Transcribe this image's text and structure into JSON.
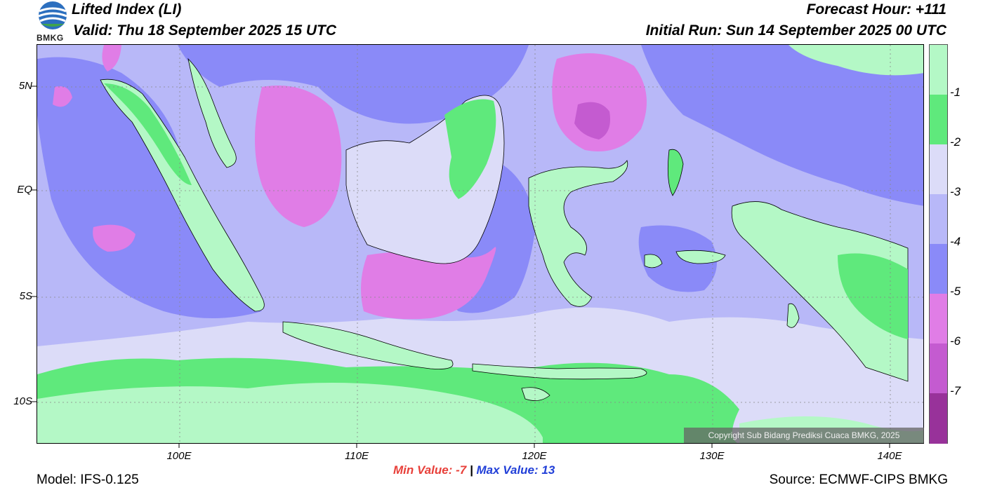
{
  "header": {
    "title": "Lifted Index (LI)",
    "valid": "Valid: Thu 18 September 2025 15 UTC",
    "forecast_hour": "Forecast Hour: +111",
    "initial_run": "Initial Run: Sun 14 September 2025 00 UTC",
    "logo_text": "BMKG"
  },
  "map": {
    "lat_labels": [
      "5N",
      "EQ",
      "5S",
      "10S"
    ],
    "lon_labels": [
      "100E",
      "110E",
      "120E",
      "130E",
      "140E"
    ],
    "copyright": "Copyright Sub Bidang Prediksi Cuaca BMKG, 2025",
    "colors": {
      "ocean_light": "#b4f8c6",
      "green": "#5fe97c",
      "pale": "#dcdcf8",
      "light_blue": "#b8b8f8",
      "blue": "#8a8af8",
      "magenta": "#e07de6",
      "purple": "#c45bd0",
      "dark_purple": "#98329a"
    }
  },
  "colorbar": {
    "labels": [
      "-1",
      "-2",
      "-3",
      "-4",
      "-5",
      "-6",
      "-7"
    ],
    "colors": [
      "#b4f8c6",
      "#5fe97c",
      "#dcdcf8",
      "#b8b8f8",
      "#8a8af8",
      "#e07de6",
      "#c45bd0",
      "#98329a"
    ]
  },
  "footer": {
    "min_label": "Min Value:",
    "min_value": "-7",
    "separator": "|",
    "max_label": "Max Value:",
    "max_value": "13",
    "model": "Model: IFS-0.125",
    "source": "Source: ECMWF-CIPS BMKG"
  }
}
